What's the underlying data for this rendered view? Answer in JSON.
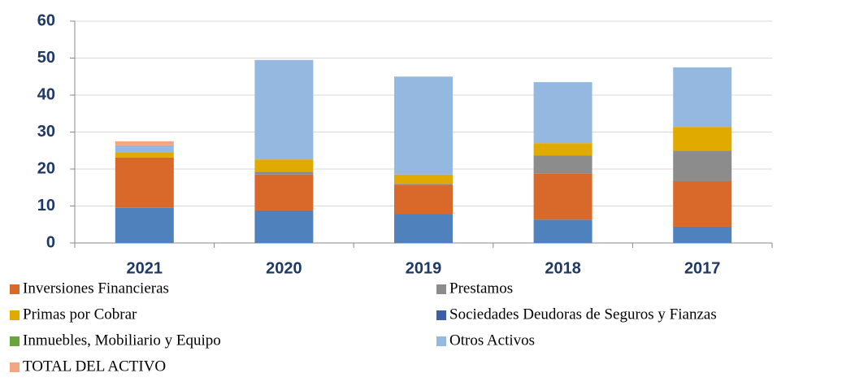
{
  "chart_data": {
    "type": "stacked_bar",
    "categories": [
      "2021",
      "2020",
      "2019",
      "2018",
      "2017"
    ],
    "series": [
      {
        "color": "#4f81bd",
        "values": [
          9.5,
          8.8,
          7.9,
          6.3,
          4.4
        ]
      },
      {
        "name": "Inversiones Financieras",
        "color": "#d9692b",
        "values": [
          13.6,
          9.7,
          7.7,
          12.4,
          12.3
        ]
      },
      {
        "name": "Prestamos",
        "color": "#8c8c8c",
        "values": [
          0,
          0.8,
          0.4,
          5,
          8.3
        ]
      },
      {
        "name": "Primas por Cobrar",
        "color": "#e1aa00",
        "values": [
          1.3,
          3.3,
          2.5,
          3.3,
          6.4
        ]
      },
      {
        "name": "Sociedades Deudoras de Seguros y Fianzas",
        "color": "#3a5ea8",
        "values": [
          0,
          0,
          0,
          0,
          0
        ]
      },
      {
        "name": "Inmuebles, Mobiliario y Equipo",
        "color": "#6aa43c",
        "values": [
          0,
          0,
          0,
          0,
          0
        ]
      },
      {
        "name": "Otros Activos",
        "color": "#95b8e0",
        "values": [
          2,
          26.9,
          26.5,
          16.5,
          16.1
        ]
      },
      {
        "name": "TOTAL DEL ACTIVO",
        "color": "#f4a582",
        "values": [
          1.1,
          0,
          0,
          0,
          0
        ]
      }
    ],
    "ylim": [
      0,
      60
    ],
    "yticks": [
      0,
      10,
      20,
      30,
      40,
      50,
      60
    ],
    "grid": true
  }
}
